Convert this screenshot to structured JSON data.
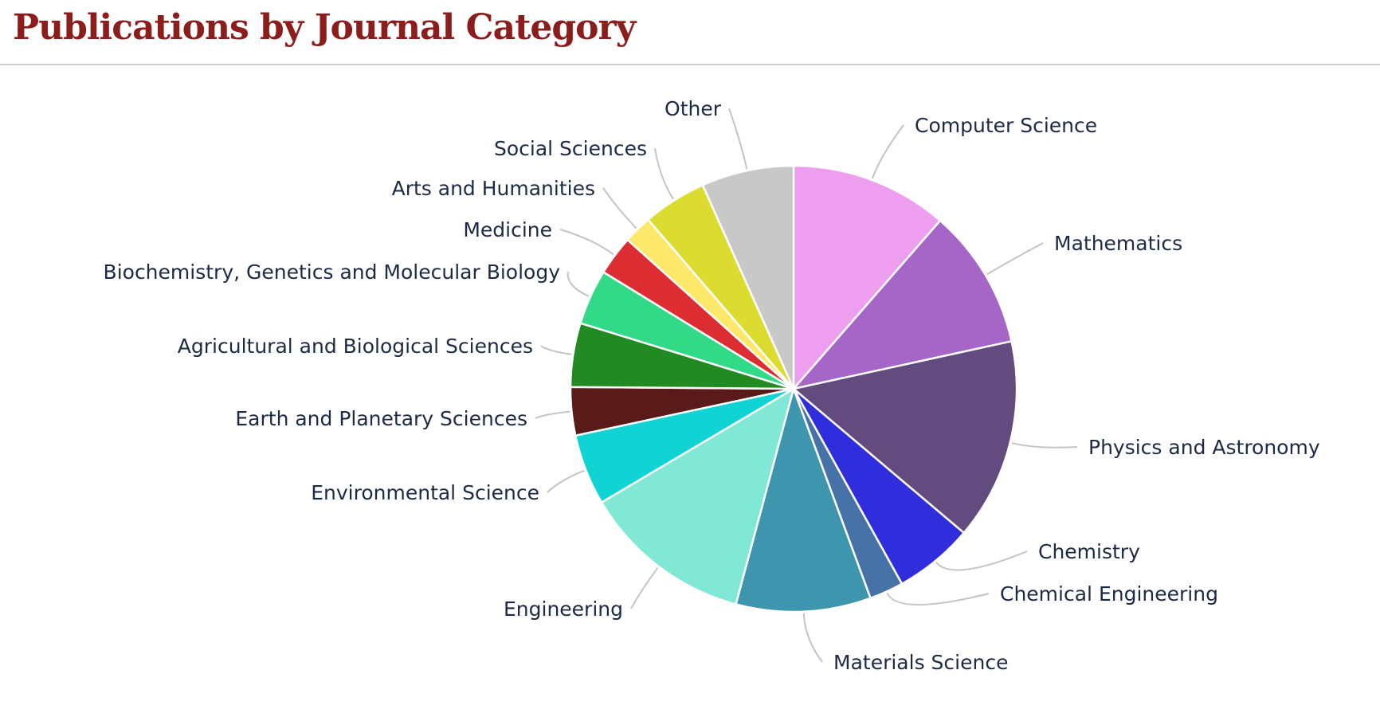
{
  "title": "Publications by Journal Category",
  "chart_data": {
    "type": "pie",
    "start": "top, clockwise",
    "slices": [
      {
        "label": "Computer Science",
        "value": 11.1,
        "color": "#ee9eee"
      },
      {
        "label": "Mathematics",
        "value": 9.9,
        "color": "#a566c8"
      },
      {
        "label": "Physics and Astronomy",
        "value": 14.2,
        "color": "#634a7f"
      },
      {
        "label": "Chemistry",
        "value": 5.6,
        "color": "#302edc"
      },
      {
        "label": "Chemical Engineering",
        "value": 2.4,
        "color": "#4672a8"
      },
      {
        "label": "Materials Science",
        "value": 9.5,
        "color": "#3d96ad"
      },
      {
        "label": "Engineering",
        "value": 12.0,
        "color": "#80e8d4"
      },
      {
        "label": "Environmental Science",
        "value": 5.0,
        "color": "#10d4d4"
      },
      {
        "label": "Earth and Planetary Sciences",
        "value": 3.4,
        "color": "#5a1a1a"
      },
      {
        "label": "Agricultural and Biological Sciences",
        "value": 4.5,
        "color": "#218a22"
      },
      {
        "label": "Biochemistry, Genetics and Molecular Biology",
        "value": 3.9,
        "color": "#32da88"
      },
      {
        "label": "Medicine",
        "value": 2.8,
        "color": "#dc2e32"
      },
      {
        "label": "Arts and Humanities",
        "value": 2.0,
        "color": "#fde86a"
      },
      {
        "label": "Social Sciences",
        "value": 4.5,
        "color": "#dbdb30"
      },
      {
        "label": "Other",
        "value": 6.5,
        "color": "#c8c8c8"
      }
    ]
  }
}
